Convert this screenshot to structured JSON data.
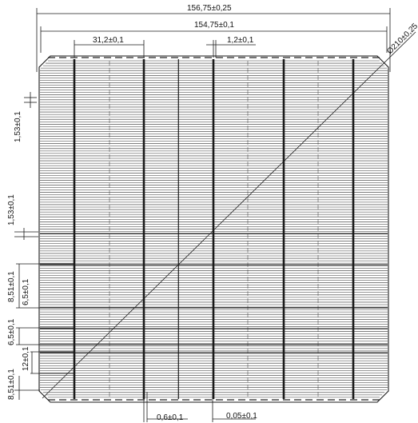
{
  "dimensions": {
    "overall_width": "156,75±0,25",
    "cell_width": "154,75±0,1",
    "busbar_pitch": "31,2±0,1",
    "busbar_width": "1,2±0,1",
    "diagonal": "Ø210±0,25",
    "finger_spacing_1": "1,53±0,1",
    "finger_spacing_2": "1,53±0,1",
    "segment_1": "8,51±0,1",
    "segment_2": "6,5±0,1",
    "segment_3": "6,5±0,1",
    "segment_4": "12±0,1",
    "segment_5": "8,51±0,1",
    "pad_width": "0,6±0,1",
    "finger_width": "0,05±0,1"
  },
  "colors": {
    "line": "#1a1a1a",
    "finger": "#333333",
    "text": "#111111"
  }
}
